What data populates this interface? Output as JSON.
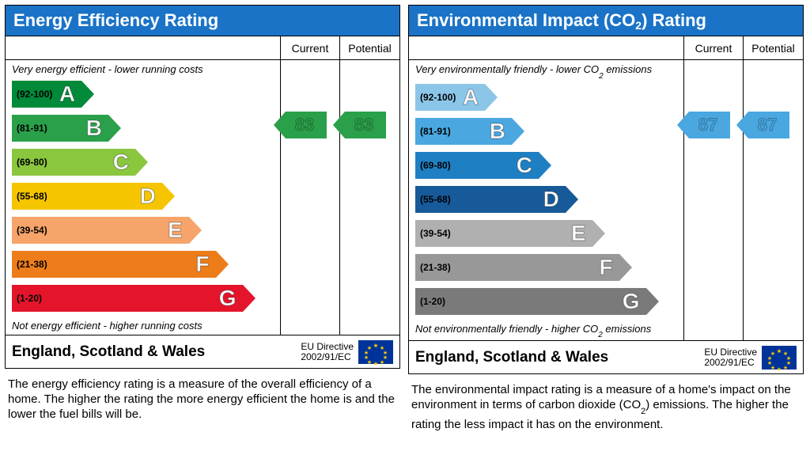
{
  "header_bg": "#1a73c7",
  "panels": [
    {
      "title_html": "Energy Efficiency Rating",
      "top_note_html": "Very energy efficient - lower running costs",
      "bot_note_html": "Not energy efficient - higher running costs",
      "desc_html": "The energy efficiency rating is a measure of the overall efficiency of a home. The higher the rating the more energy efficient the home is and the lower the fuel bills will be.",
      "current": {
        "value": 83,
        "band_index": 1,
        "arrow_color": "#2aa04a"
      },
      "potential": {
        "value": 83,
        "band_index": 1,
        "arrow_color": "#2aa04a"
      },
      "bands": [
        {
          "letter": "A",
          "range": "(92-100)",
          "color": "#008a3a",
          "width_pct": 26
        },
        {
          "letter": "B",
          "range": "(81-91)",
          "color": "#2aa04a",
          "width_pct": 36
        },
        {
          "letter": "C",
          "range": "(69-80)",
          "color": "#8bc63f",
          "width_pct": 46
        },
        {
          "letter": "D",
          "range": "(55-68)",
          "color": "#f5c500",
          "width_pct": 56
        },
        {
          "letter": "E",
          "range": "(39-54)",
          "color": "#f7a46a",
          "width_pct": 66
        },
        {
          "letter": "F",
          "range": "(21-38)",
          "color": "#ed7d1a",
          "width_pct": 76
        },
        {
          "letter": "G",
          "range": "(1-20)",
          "color": "#e4152b",
          "width_pct": 86
        }
      ]
    },
    {
      "title_html": "Environmental Impact (CO<sub>2</sub>) Rating",
      "top_note_html": "Very environmentally friendly - lower CO<sub>2</sub> emissions",
      "bot_note_html": "Not environmentally friendly - higher CO<sub>2</sub> emissions",
      "desc_html": "The environmental impact rating is a measure of a home's impact on the environment in terms of carbon dioxide (CO<sub>2</sub>) emissions. The higher the rating the less impact it has on the environment.",
      "current": {
        "value": 87,
        "band_index": 1,
        "arrow_color": "#4aa7e0"
      },
      "potential": {
        "value": 87,
        "band_index": 1,
        "arrow_color": "#4aa7e0"
      },
      "bands": [
        {
          "letter": "A",
          "range": "(92-100)",
          "color": "#8bc6e8",
          "width_pct": 26
        },
        {
          "letter": "B",
          "range": "(81-91)",
          "color": "#4aa7e0",
          "width_pct": 36
        },
        {
          "letter": "C",
          "range": "(69-80)",
          "color": "#1f7fc3",
          "width_pct": 46
        },
        {
          "letter": "D",
          "range": "(55-68)",
          "color": "#165a9a",
          "width_pct": 56
        },
        {
          "letter": "E",
          "range": "(39-54)",
          "color": "#b0b0b0",
          "width_pct": 66
        },
        {
          "letter": "F",
          "range": "(21-38)",
          "color": "#989898",
          "width_pct": 76
        },
        {
          "letter": "G",
          "range": "(1-20)",
          "color": "#7a7a7a",
          "width_pct": 86
        }
      ]
    }
  ],
  "col_current": "Current",
  "col_potential": "Potential",
  "region": "England, Scotland & Wales",
  "directive_line1": "EU Directive",
  "directive_line2": "2002/91/EC",
  "band_row_height": 40,
  "top_note_height": 22
}
